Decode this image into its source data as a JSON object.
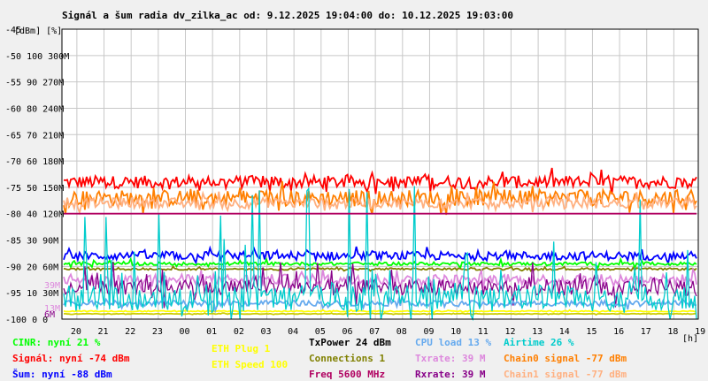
{
  "chart_data": {
    "type": "line",
    "title": "Signál a šum radia dv_zilka_ac od: 9.12.2025 19:04:00 do: 10.12.2025 19:03:00",
    "y_unit_label": "[dBm] [%]",
    "x_unit_label": "[h]",
    "x_ticks": [
      "20",
      "21",
      "22",
      "23",
      "00",
      "01",
      "02",
      "03",
      "04",
      "05",
      "06",
      "07",
      "08",
      "09",
      "10",
      "11",
      "12",
      "13",
      "14",
      "15",
      "16",
      "17",
      "18",
      "19"
    ],
    "y_ticks": [
      {
        "dbm": "-45",
        "pct": "",
        "rate": ""
      },
      {
        "dbm": "-50",
        "pct": "100",
        "rate": "300M"
      },
      {
        "dbm": "-55",
        "pct": "90",
        "rate": "270M"
      },
      {
        "dbm": "-60",
        "pct": "80",
        "rate": "240M"
      },
      {
        "dbm": "-65",
        "pct": "70",
        "rate": "210M"
      },
      {
        "dbm": "-70",
        "pct": "60",
        "rate": "180M"
      },
      {
        "dbm": "-75",
        "pct": "50",
        "rate": "150M"
      },
      {
        "dbm": "-80",
        "pct": "40",
        "rate": "120M"
      },
      {
        "dbm": "-85",
        "pct": "30",
        "rate": "90M"
      },
      {
        "dbm": "-90",
        "pct": "20",
        "rate": "60M"
      },
      {
        "dbm": "-95",
        "pct": "10",
        "rate": "30M"
      },
      {
        "dbm": "-100",
        "pct": "0",
        "rate": "0"
      }
    ],
    "ylim": [
      -100,
      -45
    ],
    "grid": true,
    "overlay_labels": [
      {
        "text": "39M",
        "color": "#dd88dd",
        "value_pct": 13
      },
      {
        "text": "13M",
        "color": "#dd88dd",
        "value_pct": 4.3
      },
      {
        "text": "6M",
        "color": "#880088",
        "value_pct": 2
      }
    ],
    "series": [
      {
        "name": "Signál",
        "color": "#ff0000",
        "unit": "dBm",
        "mean": -74,
        "spread": 1.2,
        "noise": 0.6
      },
      {
        "name": "Chain0 signal",
        "color": "#ff7f00",
        "unit": "dBm",
        "mean": -77,
        "spread": 1.5,
        "noise": 0.8
      },
      {
        "name": "Chain1 signal",
        "color": "#ffb080",
        "unit": "dBm",
        "mean": -78,
        "spread": 1.0,
        "noise": 0.5
      },
      {
        "name": "Šum",
        "color": "#0000ff",
        "unit": "dBm",
        "mean": -88,
        "spread": 0.8,
        "noise": 0.4
      },
      {
        "name": "ETH Speed",
        "color": "#ffff00",
        "unit": "%",
        "mean": 3,
        "spread": 0.2,
        "noise": 0.1
      },
      {
        "name": "ETH Plug",
        "color": "#cccc00",
        "unit": "%",
        "mean": 2,
        "spread": 0.1,
        "noise": 0.1
      },
      {
        "name": "CINR",
        "color": "#00ff00",
        "unit": "%",
        "mean": 21,
        "spread": 0.6,
        "noise": 0.4
      },
      {
        "name": "Connections",
        "color": "#808000",
        "unit": "%",
        "mean": 19,
        "spread": 0.4,
        "noise": 0.2
      },
      {
        "name": "Txrate",
        "color": "#dd88dd",
        "unit": "%",
        "mean": 15,
        "spread": 2.0,
        "noise": 1.0
      },
      {
        "name": "Rxrate",
        "color": "#880088",
        "unit": "%",
        "mean": 12,
        "spread": 3.0,
        "noise": 2.0
      },
      {
        "name": "CPU load",
        "color": "#66aaee",
        "unit": "%",
        "mean": 6,
        "spread": 1.0,
        "noise": 0.6
      },
      {
        "name": "Airtime",
        "color": "#00cccc",
        "unit": "%",
        "mean": 8,
        "spread": 5.0,
        "noise": 4.0
      },
      {
        "name": "Freq",
        "color": "#b00060",
        "unit": "dBm",
        "mean": -80,
        "spread": 0,
        "noise": 0
      },
      {
        "name": "TxPower",
        "color": "#000000",
        "unit": "%",
        "mean": 0,
        "spread": 0,
        "noise": 0
      }
    ]
  },
  "legend": {
    "col1": [
      {
        "text": "CINR: nyní 21 %",
        "color": "#00ff00"
      },
      {
        "text": "Signál: nyní -74 dBm",
        "color": "#ff0000"
      },
      {
        "text": "Šum: nyní -88 dBm",
        "color": "#0000ff"
      }
    ],
    "col2": [
      {
        "text": "ETH Plug 1",
        "color": "#ffff00"
      },
      {
        "text": "ETH Speed 100",
        "color": "#ffff00"
      }
    ],
    "col3": [
      {
        "text": "TxPower 24 dBm",
        "color": "#000000"
      },
      {
        "text": "Connections 1",
        "color": "#808000"
      },
      {
        "text": "Freq 5600 MHz",
        "color": "#b00060"
      }
    ],
    "col4": [
      {
        "text": "CPU load 13 %",
        "color": "#66aaee"
      },
      {
        "text": "Txrate: 39 M",
        "color": "#dd88dd"
      },
      {
        "text": "Rxrate: 39 M",
        "color": "#880088"
      }
    ],
    "col5": [
      {
        "text": "Airtime 26 %",
        "color": "#00cccc"
      },
      {
        "text": "Chain0 signal -77 dBm",
        "color": "#ff7f00"
      },
      {
        "text": "Chain1 signal -77 dBm",
        "color": "#ffb080"
      }
    ]
  }
}
